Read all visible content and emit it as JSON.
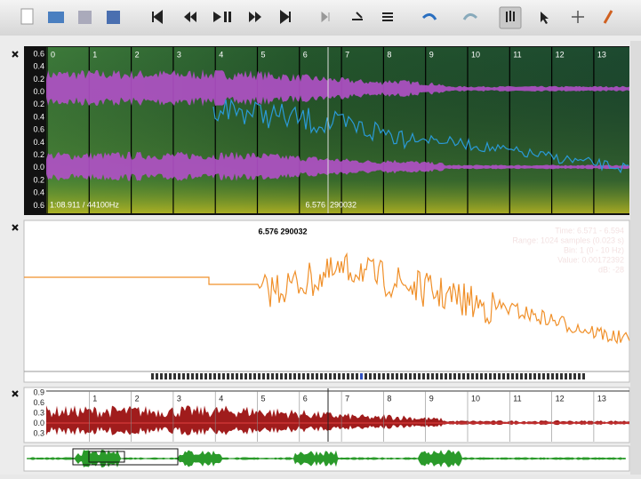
{
  "top_pane": {
    "y_labels": [
      "0.6",
      "0.4",
      "0.2",
      "0.0",
      "0.2",
      "0.4",
      "0.6",
      "0.4",
      "0.2",
      "0.0",
      "0.2",
      "0.4",
      "0.6"
    ],
    "time_labels": [
      "0",
      "1",
      "2",
      "3",
      "4",
      "5",
      "6",
      "7",
      "8",
      "9",
      "10",
      "11",
      "12",
      "13"
    ],
    "duration": "1:08.911 / 44100Hz",
    "cursor_time": "6.576",
    "cursor_frame": "290032"
  },
  "middle_pane": {
    "cursor_label": "6.576  290032",
    "info": [
      "Time: 6.571 - 6.594",
      "Range: 1024 samples (0.023 s)",
      "Bin: 1 (0 - 10 Hz)",
      "Value: 0.00172392",
      "dB: -28"
    ]
  },
  "bottom_pane": {
    "y_labels": [
      "0.9",
      "0.6",
      "0.3",
      "0.0",
      "0.3"
    ],
    "time_labels": [
      "1",
      "2",
      "3",
      "4",
      "5",
      "6",
      "7",
      "8",
      "9",
      "10",
      "11",
      "12",
      "13"
    ]
  }
}
